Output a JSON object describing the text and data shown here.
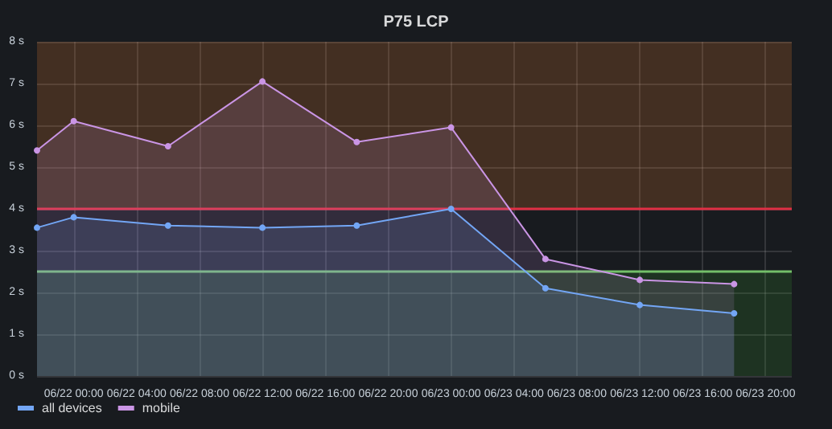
{
  "chart_data": {
    "type": "area",
    "title": "P75 LCP",
    "xlim": [
      "--06-21T21:40",
      "--06-23T21:40"
    ],
    "xticks": [
      {
        "value": "--06-22T00:00",
        "label": "06/22 00:00"
      },
      {
        "value": "--06-22T04:00",
        "label": "06/22 04:00"
      },
      {
        "value": "--06-22T08:00",
        "label": "06/22 08:00"
      },
      {
        "value": "--06-22T12:00",
        "label": "06/22 12:00"
      },
      {
        "value": "--06-22T16:00",
        "label": "06/22 16:00"
      },
      {
        "value": "--06-22T20:00",
        "label": "06/22 20:00"
      },
      {
        "value": "--06-23T00:00",
        "label": "06/23 00:00"
      },
      {
        "value": "--06-23T04:00",
        "label": "06/23 04:00"
      },
      {
        "value": "--06-23T08:00",
        "label": "06/23 08:00"
      },
      {
        "value": "--06-23T12:00",
        "label": "06/23 12:00"
      },
      {
        "value": "--06-23T16:00",
        "label": "06/23 16:00"
      },
      {
        "value": "--06-23T20:00",
        "label": "06/23 20:00"
      }
    ],
    "ylim": [
      0,
      8
    ],
    "yticks": [
      {
        "value": 0,
        "label": "0 s"
      },
      {
        "value": 1,
        "label": "1 s"
      },
      {
        "value": 2,
        "label": "2 s"
      },
      {
        "value": 3,
        "label": "3 s"
      },
      {
        "value": 4,
        "label": "4 s"
      },
      {
        "value": 5,
        "label": "5 s"
      },
      {
        "value": 6,
        "label": "6 s"
      },
      {
        "value": 7,
        "label": "7 s"
      },
      {
        "value": 8,
        "label": "8 s"
      }
    ],
    "x": [
      "--06-21T21:40",
      "--06-22T00:00",
      "--06-22T06:00",
      "--06-22T12:00",
      "--06-22T18:00",
      "--06-23T00:00",
      "--06-23T06:00",
      "--06-23T12:00",
      "--06-23T18:00"
    ],
    "series": [
      {
        "name": "all devices",
        "color": "#73a6f5",
        "values": [
          3.55,
          3.8,
          3.6,
          3.55,
          3.6,
          4.0,
          2.1,
          1.7,
          1.5
        ]
      },
      {
        "name": "mobile",
        "color": "#ca95e5",
        "values": [
          5.4,
          6.1,
          5.5,
          7.05,
          5.6,
          5.95,
          2.8,
          2.3,
          2.2
        ]
      }
    ],
    "bands": [
      {
        "axis": "y",
        "from": 4,
        "to": 8,
        "color": "#e0752d"
      },
      {
        "axis": "y",
        "from": 0,
        "to": 2.5,
        "color": "#37872d"
      }
    ],
    "ref_lines": [
      {
        "axis": "y",
        "value": 4,
        "color": "#e02f44"
      },
      {
        "axis": "y",
        "value": 2.5,
        "color": "#73bf69"
      }
    ],
    "grid": true,
    "legend": "bottom left",
    "marker": "circle",
    "line_style": "solid"
  }
}
